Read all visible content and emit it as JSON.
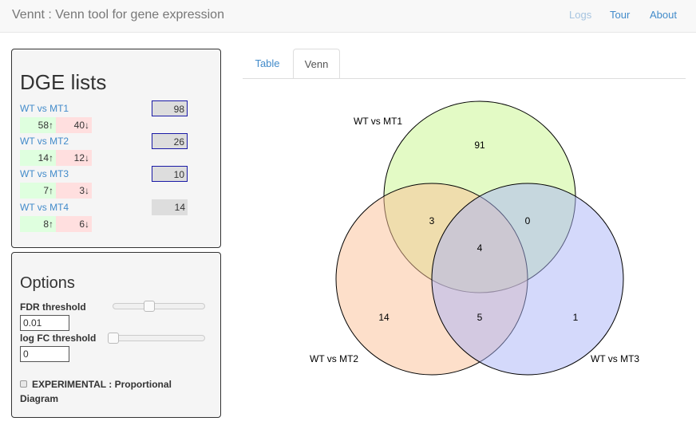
{
  "navbar": {
    "brand": "Vennt : Venn tool for gene expression",
    "links": [
      {
        "label": "Logs",
        "disabled": true
      },
      {
        "label": "Tour",
        "disabled": false
      },
      {
        "label": "About",
        "disabled": false
      }
    ]
  },
  "dge": {
    "title": "DGE lists",
    "items": [
      {
        "name": "WT vs MT1",
        "total": "98",
        "up": "58↑",
        "down": "40↓",
        "selected": true
      },
      {
        "name": "WT vs MT2",
        "total": "26",
        "up": "14↑",
        "down": "12↓",
        "selected": true
      },
      {
        "name": "WT vs MT3",
        "total": "10",
        "up": "7↑",
        "down": "3↓",
        "selected": true
      },
      {
        "name": "WT vs MT4",
        "total": "14",
        "up": "8↑",
        "down": "6↓",
        "selected": false
      }
    ]
  },
  "options": {
    "title": "Options",
    "fdr_label": "FDR threshold",
    "fdr_value": "0.01",
    "fdr_slider_fraction": 0.35,
    "logfc_label": "log FC threshold",
    "logfc_value": "0",
    "logfc_slider_fraction": 0.0,
    "experimental_label": "EXPERIMENTAL : Proportional Diagram",
    "experimental_checked": false
  },
  "tabs": [
    {
      "label": "Table",
      "active": false
    },
    {
      "label": "Venn",
      "active": true
    }
  ],
  "venn": {
    "sets": [
      {
        "name": "WT vs MT1",
        "color": "#c8f58c"
      },
      {
        "name": "WT vs MT2",
        "color": "#fcbf96"
      },
      {
        "name": "WT vs MT3",
        "color": "#aab4f8"
      }
    ],
    "regions": {
      "mt1_only": "91",
      "mt2_only": "14",
      "mt3_only": "1",
      "mt1_mt2": "3",
      "mt1_mt3": "0",
      "mt2_mt3": "5",
      "all": "4"
    }
  }
}
